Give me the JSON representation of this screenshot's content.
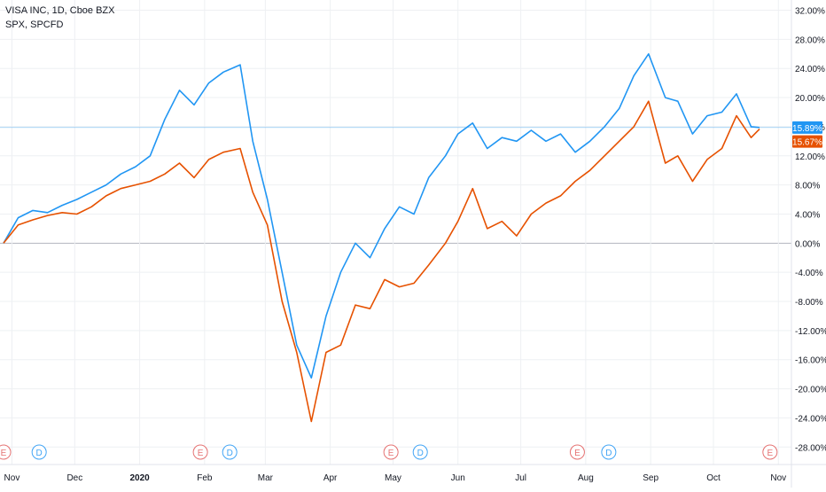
{
  "legend": {
    "main": "VISA INC, 1D, Cboe BZX",
    "compare": "SPX, SPCFD"
  },
  "colors": {
    "visa": "#2196f3",
    "spx": "#e65100",
    "grid": "#eef0f3",
    "zero_line": "#b2b5be",
    "axis_text": "#131722",
    "event_e": "#e57373",
    "event_d": "#42a5f5"
  },
  "chart_data": {
    "type": "line",
    "title": "VISA INC, 1D, Cboe BZX",
    "ylabel": "",
    "ylim": [
      -30,
      33
    ],
    "y_ticks": [
      "32.00%",
      "28.00%",
      "24.00%",
      "20.00%",
      "16.00%",
      "12.00%",
      "8.00%",
      "4.00%",
      "0.00%",
      "-4.00%",
      "-8.00%",
      "-12.00%",
      "-16.00%",
      "-20.00%",
      "-24.00%",
      "-28.00%"
    ],
    "x_ticks": [
      "Nov",
      "Dec",
      "2020",
      "Feb",
      "Mar",
      "Apr",
      "May",
      "Jun",
      "Jul",
      "Aug",
      "Sep",
      "Oct",
      "Nov"
    ],
    "grid": true,
    "series": [
      {
        "name": "VISA INC",
        "last_label": "15.89%",
        "points": [
          [
            "2019-10-28",
            0.0
          ],
          [
            "2019-11-04",
            3.5
          ],
          [
            "2019-11-11",
            4.5
          ],
          [
            "2019-11-18",
            4.2
          ],
          [
            "2019-11-25",
            5.2
          ],
          [
            "2019-12-02",
            6.0
          ],
          [
            "2019-12-09",
            7.0
          ],
          [
            "2019-12-16",
            8.0
          ],
          [
            "2019-12-23",
            9.5
          ],
          [
            "2019-12-30",
            10.5
          ],
          [
            "2020-01-06",
            12.0
          ],
          [
            "2020-01-13",
            17.0
          ],
          [
            "2020-01-20",
            21.0
          ],
          [
            "2020-01-27",
            19.0
          ],
          [
            "2020-02-03",
            22.0
          ],
          [
            "2020-02-10",
            23.5
          ],
          [
            "2020-02-18",
            24.5
          ],
          [
            "2020-02-24",
            14.0
          ],
          [
            "2020-03-02",
            6.0
          ],
          [
            "2020-03-09",
            -4.0
          ],
          [
            "2020-03-16",
            -14.0
          ],
          [
            "2020-03-23",
            -18.5
          ],
          [
            "2020-03-30",
            -10.0
          ],
          [
            "2020-04-06",
            -4.0
          ],
          [
            "2020-04-13",
            0.0
          ],
          [
            "2020-04-20",
            -2.0
          ],
          [
            "2020-04-27",
            2.0
          ],
          [
            "2020-05-04",
            5.0
          ],
          [
            "2020-05-11",
            4.0
          ],
          [
            "2020-05-18",
            9.0
          ],
          [
            "2020-05-26",
            12.0
          ],
          [
            "2020-06-01",
            15.0
          ],
          [
            "2020-06-08",
            16.5
          ],
          [
            "2020-06-15",
            13.0
          ],
          [
            "2020-06-22",
            14.5
          ],
          [
            "2020-06-29",
            14.0
          ],
          [
            "2020-07-06",
            15.5
          ],
          [
            "2020-07-13",
            14.0
          ],
          [
            "2020-07-20",
            15.0
          ],
          [
            "2020-07-27",
            12.5
          ],
          [
            "2020-08-03",
            14.0
          ],
          [
            "2020-08-10",
            16.0
          ],
          [
            "2020-08-17",
            18.5
          ],
          [
            "2020-08-24",
            23.0
          ],
          [
            "2020-08-31",
            26.0
          ],
          [
            "2020-09-08",
            20.0
          ],
          [
            "2020-09-14",
            19.5
          ],
          [
            "2020-09-21",
            15.0
          ],
          [
            "2020-09-28",
            17.5
          ],
          [
            "2020-10-05",
            18.0
          ],
          [
            "2020-10-12",
            20.5
          ],
          [
            "2020-10-19",
            16.0
          ],
          [
            "2020-10-23",
            15.89
          ]
        ]
      },
      {
        "name": "SPX",
        "last_label": "15.67%",
        "points": [
          [
            "2019-10-28",
            0.0
          ],
          [
            "2019-11-04",
            2.5
          ],
          [
            "2019-11-11",
            3.2
          ],
          [
            "2019-11-18",
            3.8
          ],
          [
            "2019-11-25",
            4.2
          ],
          [
            "2019-12-02",
            4.0
          ],
          [
            "2019-12-09",
            5.0
          ],
          [
            "2019-12-16",
            6.5
          ],
          [
            "2019-12-23",
            7.5
          ],
          [
            "2019-12-30",
            8.0
          ],
          [
            "2020-01-06",
            8.5
          ],
          [
            "2020-01-13",
            9.5
          ],
          [
            "2020-01-20",
            11.0
          ],
          [
            "2020-01-27",
            9.0
          ],
          [
            "2020-02-03",
            11.5
          ],
          [
            "2020-02-10",
            12.5
          ],
          [
            "2020-02-18",
            13.0
          ],
          [
            "2020-02-24",
            7.0
          ],
          [
            "2020-03-02",
            2.5
          ],
          [
            "2020-03-09",
            -8.0
          ],
          [
            "2020-03-16",
            -15.0
          ],
          [
            "2020-03-23",
            -24.5
          ],
          [
            "2020-03-30",
            -15.0
          ],
          [
            "2020-04-06",
            -14.0
          ],
          [
            "2020-04-13",
            -8.5
          ],
          [
            "2020-04-20",
            -9.0
          ],
          [
            "2020-04-27",
            -5.0
          ],
          [
            "2020-05-04",
            -6.0
          ],
          [
            "2020-05-11",
            -5.5
          ],
          [
            "2020-05-18",
            -3.0
          ],
          [
            "2020-05-26",
            0.0
          ],
          [
            "2020-06-01",
            3.0
          ],
          [
            "2020-06-08",
            7.5
          ],
          [
            "2020-06-15",
            2.0
          ],
          [
            "2020-06-22",
            3.0
          ],
          [
            "2020-06-29",
            1.0
          ],
          [
            "2020-07-06",
            4.0
          ],
          [
            "2020-07-13",
            5.5
          ],
          [
            "2020-07-20",
            6.5
          ],
          [
            "2020-07-27",
            8.5
          ],
          [
            "2020-08-03",
            10.0
          ],
          [
            "2020-08-10",
            12.0
          ],
          [
            "2020-08-17",
            14.0
          ],
          [
            "2020-08-24",
            16.0
          ],
          [
            "2020-08-31",
            19.5
          ],
          [
            "2020-09-08",
            11.0
          ],
          [
            "2020-09-14",
            12.0
          ],
          [
            "2020-09-21",
            8.5
          ],
          [
            "2020-09-28",
            11.5
          ],
          [
            "2020-10-05",
            13.0
          ],
          [
            "2020-10-12",
            17.5
          ],
          [
            "2020-10-19",
            14.5
          ],
          [
            "2020-10-23",
            15.67
          ]
        ]
      }
    ],
    "events": [
      {
        "type": "E",
        "date": "2019-10-28"
      },
      {
        "type": "D",
        "date": "2019-11-14"
      },
      {
        "type": "E",
        "date": "2020-01-30"
      },
      {
        "type": "D",
        "date": "2020-02-13"
      },
      {
        "type": "E",
        "date": "2020-04-30"
      },
      {
        "type": "D",
        "date": "2020-05-14"
      },
      {
        "type": "E",
        "date": "2020-07-28"
      },
      {
        "type": "D",
        "date": "2020-08-12"
      },
      {
        "type": "E",
        "date": "2020-10-28"
      }
    ]
  }
}
